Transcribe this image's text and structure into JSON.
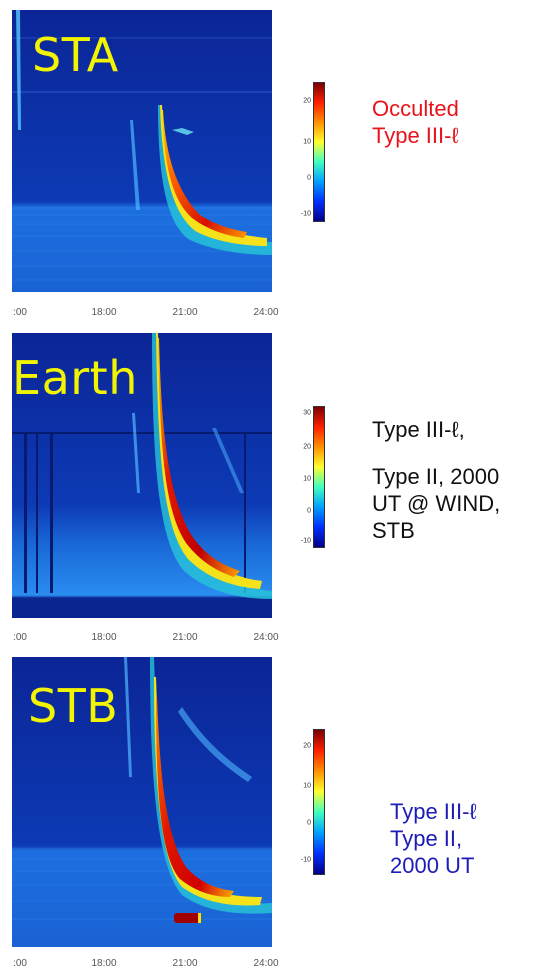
{
  "colors": {
    "background": "#0a2a9a",
    "sta_note": "#e8141c",
    "earth_note": "#111111",
    "stb_note": "#1c1cb8",
    "station_label": "#f3f500"
  },
  "chart_data": [
    {
      "type": "heatmap",
      "station": "STA",
      "x_ticks": [
        ":00",
        "18:00",
        "21:00",
        "24:00"
      ],
      "xlim": [
        "15:00",
        "24:00"
      ],
      "colorbar_ticks": [
        "20",
        "10",
        "0",
        "-10"
      ],
      "colorbar_range": [
        -12,
        28
      ],
      "note_lines": [
        "Occulted",
        "Type III-ℓ"
      ]
    },
    {
      "type": "heatmap",
      "station": "Earth",
      "x_ticks": [
        ":00",
        "18:00",
        "21:00",
        "24:00"
      ],
      "xlim": [
        "15:00",
        "24:00"
      ],
      "colorbar_ticks": [
        "30",
        "20",
        "10",
        "0",
        "-10"
      ],
      "colorbar_range": [
        -12,
        34
      ],
      "note_lines": [
        "Type III-ℓ,",
        "",
        "Type II, 2000",
        "UT @ WIND,",
        "STB"
      ]
    },
    {
      "type": "heatmap",
      "station": "STB",
      "x_ticks": [
        ":00",
        "18:00",
        "21:00",
        "24:00"
      ],
      "xlim": [
        "15:00",
        "24:00"
      ],
      "colorbar_ticks": [
        "20",
        "10",
        "0",
        "-10"
      ],
      "colorbar_range": [
        -12,
        28
      ],
      "note_lines": [
        "Type III-ℓ",
        "Type II,",
        "2000 UT"
      ]
    }
  ]
}
